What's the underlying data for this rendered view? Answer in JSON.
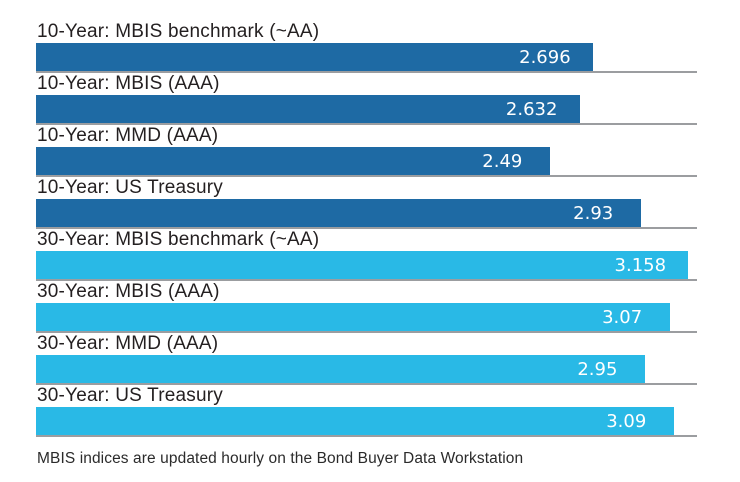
{
  "chart_data": {
    "type": "bar",
    "orientation": "horizontal",
    "title": "",
    "xlabel": "",
    "ylabel": "",
    "xlim": [
      0,
      3.2
    ],
    "grid": "per-row bottom baseline only",
    "legend": "none",
    "categories": [
      "10-Year: MBIS benchmark (~AA)",
      "10-Year: MBIS (AAA)",
      "10-Year: MMD (AAA)",
      "10-Year: US Treasury",
      "30-Year: MBIS benchmark (~AA)",
      "30-Year: MBIS (AAA)",
      "30-Year: MMD (AAA)",
      "30-Year: US Treasury"
    ],
    "values": [
      2.696,
      2.632,
      2.49,
      2.93,
      3.158,
      3.07,
      2.95,
      3.09
    ],
    "value_labels": [
      "2.696",
      "2.632",
      "2.49",
      "2.93",
      "3.158",
      "3.07",
      "2.95",
      "3.09"
    ],
    "groups": [
      "10-year",
      "10-year",
      "10-year",
      "10-year",
      "30-year",
      "30-year",
      "30-year",
      "30-year"
    ],
    "colors": {
      "10-year": "#1e6aa4",
      "30-year": "#29b9e6",
      "baseline": "#9b9da0",
      "value_text": "#ffffff",
      "label_text": "#231f20"
    },
    "footnote": "MBIS indices are updated hourly on the Bond Buyer Data Workstation"
  }
}
